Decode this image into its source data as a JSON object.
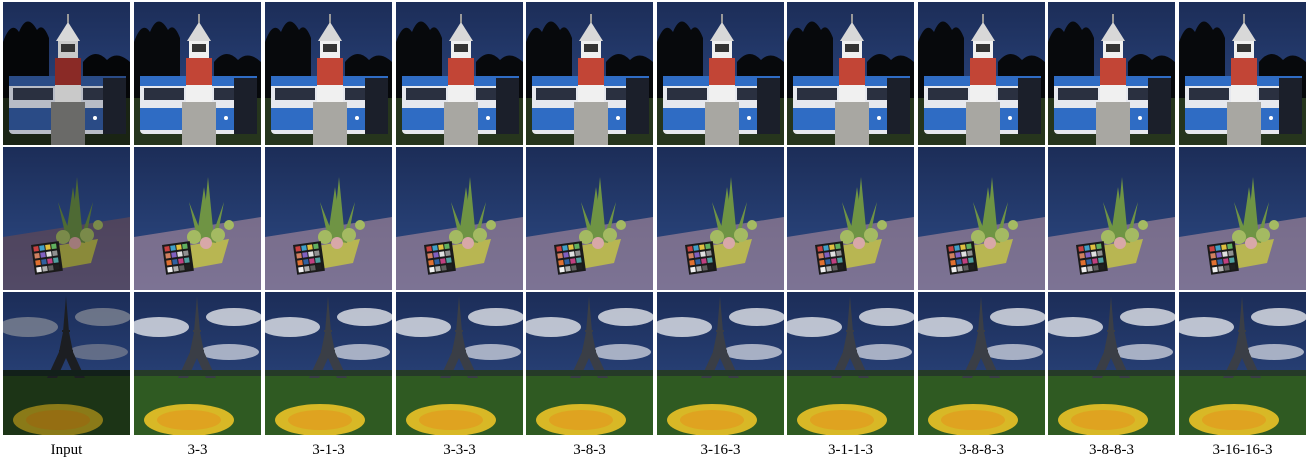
{
  "figure": {
    "columns": [
      {
        "label": "Input",
        "variant": "input"
      },
      {
        "label": "3-3",
        "variant": "enhanced"
      },
      {
        "label": "3-1-3",
        "variant": "enhanced"
      },
      {
        "label": "3-3-3",
        "variant": "enhanced"
      },
      {
        "label": "3-8-3",
        "variant": "enhanced"
      },
      {
        "label": "3-16-3",
        "variant": "enhanced"
      },
      {
        "label": "3-1-1-3",
        "variant": "enhanced"
      },
      {
        "label": "3-8-8-3",
        "variant": "enhanced"
      },
      {
        "label": "3-8-8-3",
        "variant": "enhanced"
      },
      {
        "label": "3-16-16-3",
        "variant": "enhanced"
      }
    ],
    "rows": [
      {
        "scene": "lighthouse-and-bus"
      },
      {
        "scene": "succulent-pot-with-color-checker"
      },
      {
        "scene": "eiffel-tower-with-flowerbed"
      }
    ]
  }
}
